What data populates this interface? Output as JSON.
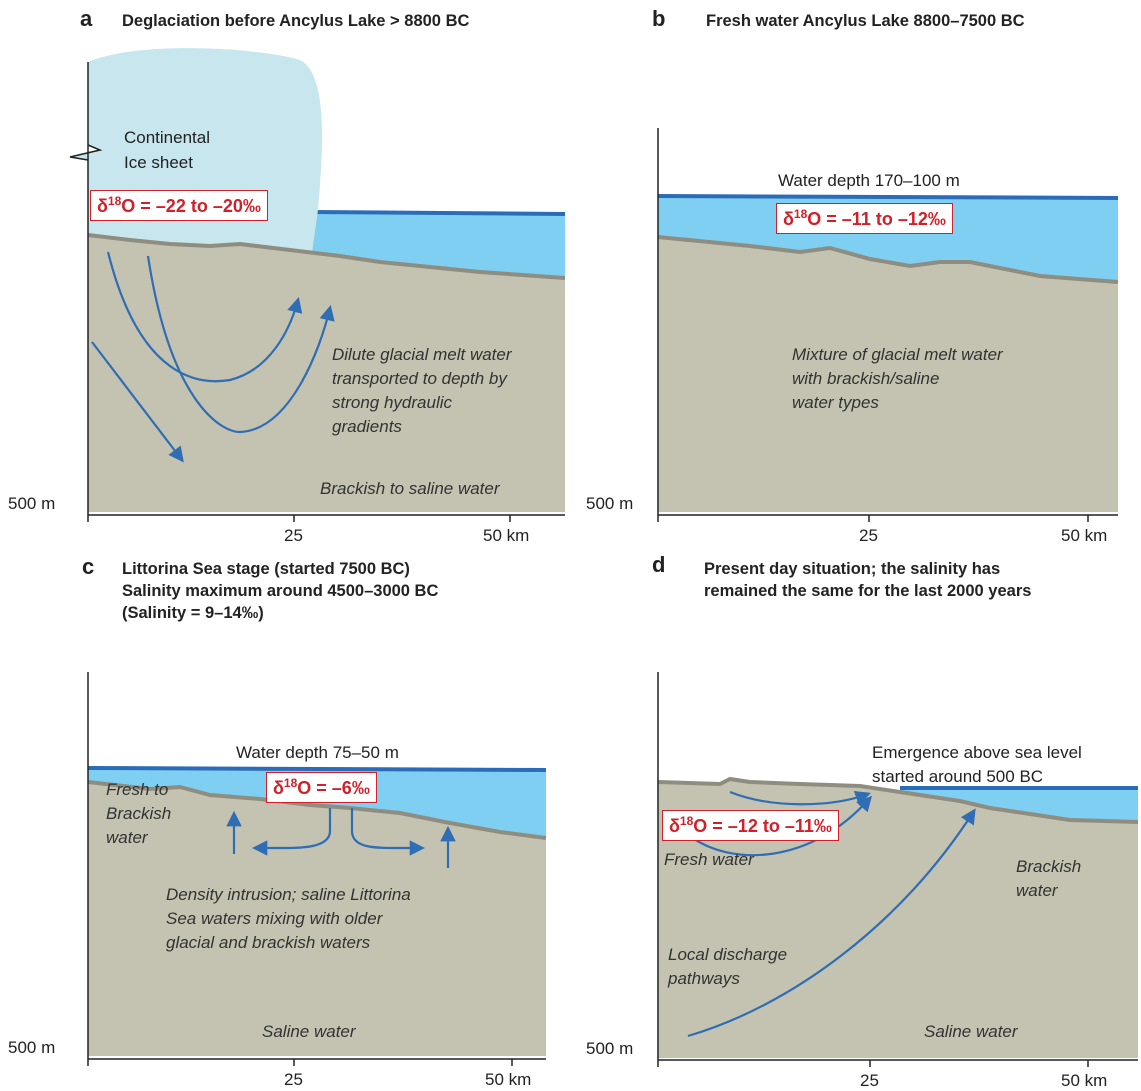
{
  "panels": {
    "a": {
      "letter": "a",
      "title_lines": [
        "Deglaciation before Ancylus Lake > 8800 BC"
      ],
      "ice_label_lines": [
        "Continental",
        "Ice sheet"
      ],
      "isotope": {
        "prefix": "δ",
        "sup": "18",
        "rest": "O = –22 to –20‰"
      },
      "notes": [
        [
          "Dilute glacial melt water",
          "transported to depth by",
          "strong hydraulic",
          "gradients"
        ],
        [
          "Brackish to saline water"
        ]
      ],
      "depth_label": "500 m",
      "x_ticks": [
        "25",
        "50 km"
      ]
    },
    "b": {
      "letter": "b",
      "title_lines": [
        "Fresh water Ancylus Lake 8800–7500 BC"
      ],
      "water_label": "Water depth 170–100 m",
      "isotope": {
        "prefix": "δ",
        "sup": "18",
        "rest": "O = –11 to –12‰"
      },
      "notes": [
        [
          "Mixture of glacial melt water",
          "with brackish/saline",
          "water types"
        ]
      ],
      "depth_label": "500 m",
      "x_ticks": [
        "25",
        "50 km"
      ]
    },
    "c": {
      "letter": "c",
      "title_lines": [
        "Littorina Sea stage (started 7500 BC)",
        "Salinity maximum around 4500–3000 BC",
        "(Salinity = 9–14‰)"
      ],
      "water_label": "Water depth 75–50 m",
      "isotope": {
        "prefix": "δ",
        "sup": "18",
        "rest": "O = –6‰"
      },
      "notes": [
        [
          "Fresh to",
          "Brackish",
          "water"
        ],
        [
          "Density intrusion; saline Littorina",
          "Sea waters mixing with older",
          "glacial and brackish waters"
        ],
        [
          "Saline water"
        ]
      ],
      "depth_label": "500 m",
      "x_ticks": [
        "25",
        "50 km"
      ]
    },
    "d": {
      "letter": "d",
      "title_lines": [
        "Present day situation; the salinity has",
        "remained the same for the last 2000 years"
      ],
      "emergence_lines": [
        "Emergence above sea level",
        "started around 500 BC"
      ],
      "isotope": {
        "prefix": "δ",
        "sup": "18",
        "rest": "O = –12 to –11‰"
      },
      "notes": [
        [
          "Fresh water"
        ],
        [
          "Brackish",
          "water"
        ],
        [
          "Local discharge",
          "pathways"
        ],
        [
          "Saline water"
        ]
      ],
      "depth_label": "500 m",
      "x_ticks": [
        "25",
        "50 km"
      ]
    }
  },
  "colors": {
    "ground": "#c4c2b0",
    "surface_line": "#8e8d80",
    "water": "#7fcff2",
    "water_line": "#2b6cb8",
    "ice": "#c7e6ee",
    "arrow": "#2f6db5",
    "isotope_red": "#d0202a"
  }
}
